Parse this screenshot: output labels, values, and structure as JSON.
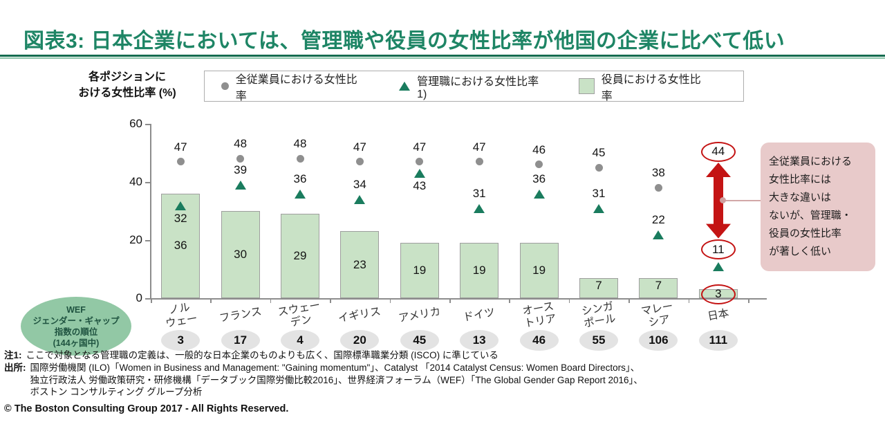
{
  "header": {
    "title": "図表3: 日本企業においては、管理職や役員の女性比率が他国の企業に比べて低い"
  },
  "axis_caption": {
    "line1": "各ポジションに",
    "line2": "おける女性比率 (%)"
  },
  "legend": {
    "items": [
      {
        "marker": "dot-icon",
        "label": "全従業員における女性比率"
      },
      {
        "marker": "triangle-icon",
        "label": "管理職における女性比率1)"
      },
      {
        "marker": "bar-swatch-icon",
        "label": "役員における女性比率"
      }
    ]
  },
  "chart_data": {
    "type": "bar",
    "title": "各ポジションにおける女性比率 (%)",
    "categories": [
      "ノルウェー",
      "フランス",
      "スウェーデン",
      "イギリス",
      "アメリカ",
      "ドイツ",
      "オーストリア",
      "シンガポール",
      "マレーシア",
      "日本"
    ],
    "category_label_lines": [
      [
        "ノル",
        "ウェー"
      ],
      [
        "フランス"
      ],
      [
        "スウェー",
        "デン"
      ],
      [
        "イギリス"
      ],
      [
        "アメリカ"
      ],
      [
        "ドイツ"
      ],
      [
        "オース",
        "トリア"
      ],
      [
        "シンガ",
        "ポール"
      ],
      [
        "マレー",
        "シア"
      ],
      [
        "日本"
      ]
    ],
    "series": [
      {
        "name": "全従業員における女性比率",
        "type": "dot",
        "values": [
          47,
          48,
          48,
          47,
          47,
          47,
          46,
          45,
          38,
          44
        ]
      },
      {
        "name": "管理職における女性比率1)",
        "type": "triangle",
        "values": [
          32,
          39,
          36,
          34,
          43,
          31,
          36,
          31,
          22,
          11
        ],
        "label_below_indices": [
          0,
          4
        ]
      },
      {
        "name": "役員における女性比率",
        "type": "bar",
        "values": [
          36,
          30,
          29,
          23,
          19,
          19,
          19,
          7,
          7,
          3
        ]
      }
    ],
    "wef_ranks": [
      3,
      17,
      4,
      20,
      45,
      13,
      46,
      55,
      106,
      111
    ],
    "ylim": [
      0,
      60
    ],
    "yticks": [
      0,
      20,
      40,
      60
    ],
    "highlight_country_index": 9,
    "legend_position": "top",
    "grid": false
  },
  "wef_bubble": {
    "text": "WEF\nジェンダー・ギャップ\n指数の順位\n(144ヶ国中)"
  },
  "annotation": {
    "text": "全従業員における\n女性比率には\n大きな違いは\nないが、管理職・\n役員の女性比率\nが著しく低い"
  },
  "footnotes": {
    "note1_label": "注1:",
    "note1_text": "ここで対象となる管理職の定義は、一般的な日本企業のものよりも広く、国際標準職業分類 (ISCO) に準じている",
    "source_label": "出所:",
    "source_lines": [
      "国際労働機関 (ILO)「Women in Business and Management: \"Gaining momentum\"」、Catalyst 「2014 Catalyst Census: Women Board Directors」、",
      "独立行政法人 労働政策研究・研修機構「データブック国際労働比較2016」、世界経済フォーラム（WEF）「The Global Gender Gap Report 2016」、",
      "ボストン コンサルティング グループ分析"
    ],
    "copyright": "© The Boston Consulting Group 2017 - All Rights Reserved."
  },
  "colors": {
    "title_green": "#1E8565",
    "rule_dark_green": "#156C50",
    "rule_light_green": "#8CC3A9",
    "bar_fill": "#C9E2C6",
    "bar_border": "#9E9E9E",
    "triangle_green": "#1A7C5E",
    "dot_gray": "#8F8F8F",
    "highlight_red": "#C41414",
    "annotation_pink": "#E8CACA",
    "wef_bubble_green": "#92C8A5",
    "rank_badge_gray": "#E3E3E3"
  }
}
